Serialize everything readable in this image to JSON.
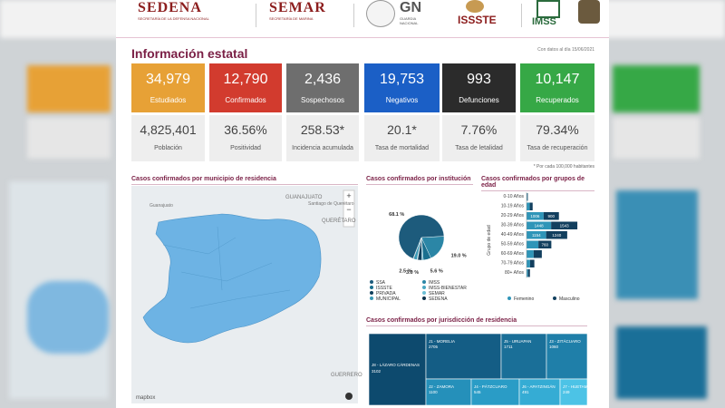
{
  "header": {
    "sedena": "SEDENA",
    "sedena_sub": "SECRETARÍA DE LA DEFENSA NACIONAL",
    "semar": "SEMAR",
    "semar_sub": "SECRETARÍA DE MARINA",
    "gn": "GN",
    "gn_sub": "GUARDIA NACIONAL",
    "issste": "ISSSTE",
    "imss": "IMSS"
  },
  "title": "Información estatal",
  "date": "Con datos al día 15/06/2021",
  "cards": [
    {
      "value": "34,979",
      "label": "Estudiados",
      "color": "#e7a136"
    },
    {
      "value": "12,790",
      "label": "Confirmados",
      "color": "#d23b2e"
    },
    {
      "value": "2,436",
      "label": "Sospechosos",
      "color": "#6e6e6e"
    },
    {
      "value": "19,753",
      "label": "Negativos",
      "color": "#1b5fc6"
    },
    {
      "value": "993",
      "label": "Defunciones",
      "color": "#2b2b2b"
    },
    {
      "value": "10,147",
      "label": "Recuperados",
      "color": "#36a846"
    }
  ],
  "rates": [
    {
      "value": "4,825,401",
      "label": "Población"
    },
    {
      "value": "36.56%",
      "label": "Positividad"
    },
    {
      "value": "258.53*",
      "label": "Incidencia acumulada"
    },
    {
      "value": "20.1*",
      "label": "Tasa de mortalidad"
    },
    {
      "value": "7.76%",
      "label": "Tasa de letalidad"
    },
    {
      "value": "79.34%",
      "label": "Tasa de recuperación"
    }
  ],
  "note": "* Por cada 100,000 habitantes",
  "map": {
    "title": "Casos confirmados por municipio de residencia",
    "labels": [
      "GUANAJUATO",
      "Guanajuato",
      "Santiago de Querétaro",
      "QUERÉTARO",
      "GUERRERO"
    ],
    "attribution": "mapbox"
  },
  "institution_chart": {
    "type": "pie",
    "title": "Casos confirmados por institución",
    "categories": [
      "SSA",
      "IMSS",
      "ISSSTE",
      "IMSS-BIENESTAR",
      "PRIVADA",
      "SEMAR",
      "MUNICIPAL",
      "SEDENA"
    ],
    "values": [
      68.1,
      19.0,
      5.6,
      1.0,
      3.0,
      0.5,
      2.5,
      0.3
    ],
    "value_labels": [
      "68.1 %",
      "19.0 %",
      "5.6 %",
      null,
      "3.0 %",
      null,
      "2.5 %",
      null
    ],
    "colors": [
      "#1d5b7c",
      "#2b86a6",
      "#1a6f8f",
      "#4aa7c2",
      "#0f3f5c",
      "#6cc0d6",
      "#3998b5",
      "#0b2f48"
    ]
  },
  "age_chart": {
    "type": "bar",
    "title": "Casos confirmados por grupos de edad",
    "y_label": "Grupo de edad",
    "categories": [
      "0-10 Años",
      "10-19 Años",
      "20-29 Años",
      "30-39 Años",
      "40-49 Años",
      "50-59 Años",
      "60-69 Años",
      "70-79 Años",
      "80+ Años"
    ],
    "series": [
      {
        "name": "Femenino",
        "color": "#2f95b8",
        "values": [
          40,
          190,
          1006,
          1448,
          1154,
          700,
          420,
          210,
          90
        ]
      },
      {
        "name": "Masculino",
        "color": "#123f5e",
        "values": [
          35,
          170,
          900,
          1543,
          1240,
          760,
          480,
          250,
          110
        ]
      }
    ],
    "xlim": [
      0,
      3200
    ]
  },
  "jurisdiction_chart": {
    "type": "treemap",
    "title": "Casos confirmados por jurisdicción de residencia",
    "categories": [
      "J8 - LÁZARO CÁRDENAS",
      "J1 - MORELIA",
      "J5 - URUAPAN",
      "J3 - ZITÁCUARO",
      "J2 - ZAMORA",
      "J4 - PÁTZCUARO",
      "J6 - APATZINGÁN",
      "J7 - HUETAMO"
    ],
    "values": [
      3102,
      2705,
      1711,
      1060,
      1100,
      545,
      491,
      249
    ],
    "colors": [
      "#0d4a6e",
      "#145d85",
      "#1a6f98",
      "#1f7fa9",
      "#2590ba",
      "#2a9cc6",
      "#35acd4",
      "#4cc3e6"
    ]
  }
}
